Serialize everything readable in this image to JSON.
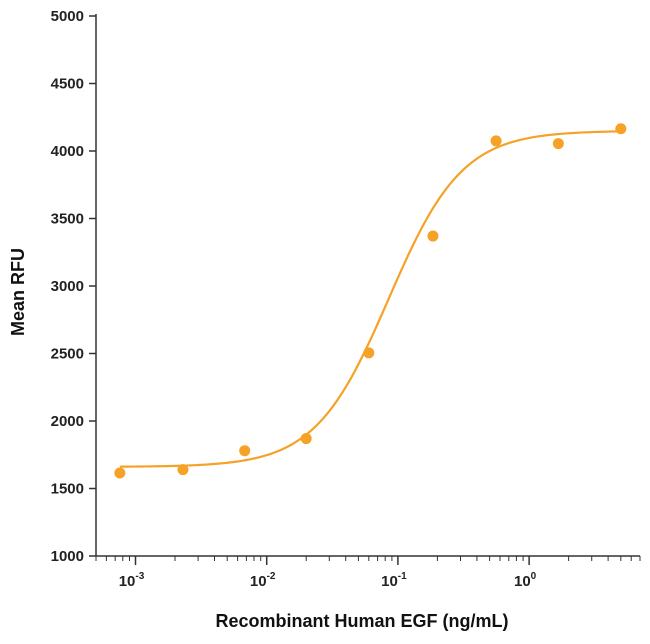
{
  "chart_data": {
    "type": "scatter",
    "title": "",
    "xlabel": "Recombinant Human EGF (ng/mL)",
    "ylabel": "Mean RFU",
    "xscale": "log",
    "xlim": [
      0.0005,
      7
    ],
    "ylim": [
      1000,
      5000
    ],
    "yticks": [
      "1000",
      "1500",
      "2000",
      "2500",
      "3000",
      "3500",
      "4000",
      "4500",
      "5000"
    ],
    "xticks": [
      {
        "value": 0.001,
        "base": "10",
        "exp": "-3"
      },
      {
        "value": 0.01,
        "base": "10",
        "exp": "-2"
      },
      {
        "value": 0.1,
        "base": "10",
        "exp": "-1"
      },
      {
        "value": 1,
        "base": "10",
        "exp": "0"
      }
    ],
    "grid": false,
    "color": "#F5A227",
    "points": [
      {
        "x": 0.00076,
        "y": 1615
      },
      {
        "x": 0.0023,
        "y": 1640
      },
      {
        "x": 0.0068,
        "y": 1780
      },
      {
        "x": 0.02,
        "y": 1870
      },
      {
        "x": 0.06,
        "y": 2505
      },
      {
        "x": 0.185,
        "y": 3370
      },
      {
        "x": 0.56,
        "y": 4075
      },
      {
        "x": 1.67,
        "y": 4055
      },
      {
        "x": 5.0,
        "y": 4165
      }
    ],
    "fit": {
      "bottom": 1660,
      "top": 4150,
      "ec50": 0.085,
      "hill": 1.55
    }
  }
}
